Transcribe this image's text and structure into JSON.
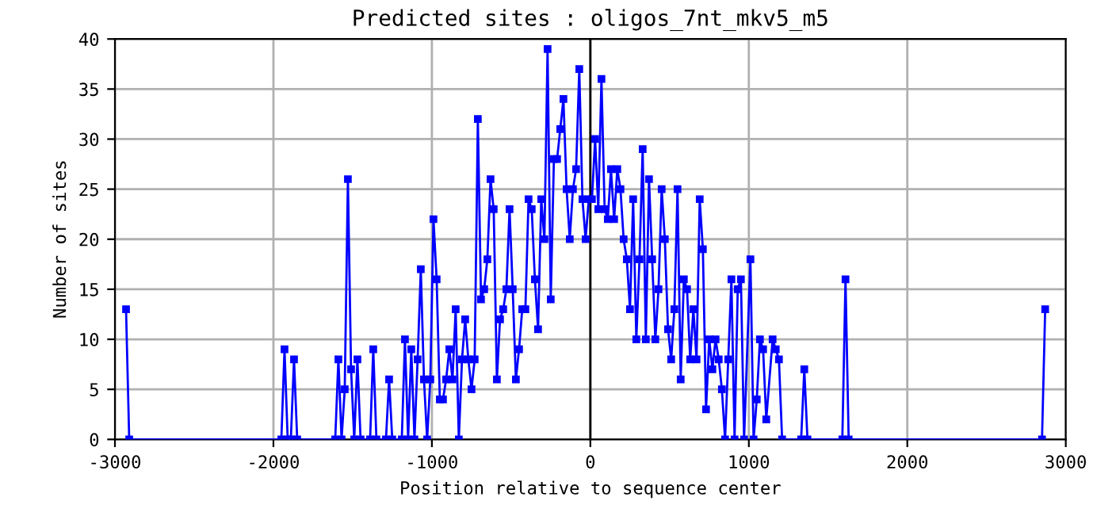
{
  "chart_data": {
    "type": "line",
    "title": "Predicted sites : oligos_7nt_mkv5_m5",
    "xlabel": "Position relative to sequence center",
    "ylabel": "Number of sites",
    "series": [
      {
        "color": "#0000ff",
        "x": [
          -2930,
          -2910,
          -1950,
          -1930,
          -1910,
          -1890,
          -1870,
          -1850,
          -1610,
          -1590,
          -1570,
          -1550,
          -1530,
          -1510,
          -1490,
          -1470,
          -1450,
          -1390,
          -1370,
          -1350,
          -1290,
          -1270,
          -1250,
          -1190,
          -1170,
          -1150,
          -1130,
          -1110,
          -1090,
          -1070,
          -1050,
          -1030,
          -1010,
          -990,
          -970,
          -950,
          -930,
          -910,
          -890,
          -870,
          -850,
          -830,
          -810,
          -790,
          -770,
          -750,
          -730,
          -710,
          -690,
          -670,
          -650,
          -630,
          -610,
          -590,
          -570,
          -550,
          -530,
          -510,
          -490,
          -470,
          -450,
          -430,
          -410,
          -390,
          -370,
          -350,
          -330,
          -310,
          -290,
          -270,
          -250,
          -230,
          -210,
          -190,
          -170,
          -150,
          -130,
          -110,
          -90,
          -70,
          -50,
          -30,
          -10,
          10,
          30,
          50,
          70,
          90,
          110,
          130,
          150,
          170,
          190,
          210,
          230,
          250,
          270,
          290,
          310,
          330,
          350,
          370,
          390,
          410,
          430,
          450,
          470,
          490,
          510,
          530,
          550,
          570,
          590,
          610,
          630,
          650,
          670,
          690,
          710,
          730,
          750,
          770,
          790,
          810,
          830,
          850,
          870,
          890,
          910,
          930,
          950,
          970,
          1010,
          1030,
          1050,
          1070,
          1090,
          1110,
          1150,
          1170,
          1190,
          1210,
          1330,
          1350,
          1370,
          1590,
          1610,
          1630,
          2850,
          2870
        ],
        "values": [
          13,
          0,
          0,
          9,
          0,
          0,
          8,
          0,
          0,
          8,
          0,
          5,
          26,
          7,
          0,
          8,
          0,
          0,
          9,
          0,
          0,
          6,
          0,
          0,
          10,
          0,
          9,
          0,
          8,
          17,
          6,
          0,
          6,
          22,
          16,
          4,
          4,
          6,
          9,
          6,
          13,
          0,
          8,
          12,
          8,
          5,
          8,
          32,
          14,
          15,
          18,
          26,
          23,
          6,
          12,
          13,
          15,
          23,
          15,
          6,
          9,
          13,
          13,
          24,
          23,
          16,
          11,
          24,
          20,
          39,
          14,
          28,
          28,
          31,
          34,
          25,
          20,
          25,
          27,
          37,
          24,
          20,
          24,
          24,
          30,
          23,
          36,
          23,
          22,
          27,
          22,
          27,
          25,
          20,
          18,
          13,
          24,
          10,
          18,
          29,
          10,
          26,
          18,
          10,
          15,
          25,
          20,
          11,
          8,
          13,
          25,
          6,
          16,
          15,
          8,
          13,
          8,
          24,
          19,
          3,
          10,
          7,
          10,
          8,
          5,
          0,
          8,
          16,
          0,
          15,
          16,
          0,
          18,
          0,
          4,
          10,
          9,
          2,
          10,
          9,
          8,
          0,
          0,
          7,
          0,
          0,
          16,
          0,
          0,
          13
        ]
      }
    ],
    "xlim": [
      -3000,
      3000
    ],
    "xticks": [
      -3000,
      -2000,
      -1000,
      0,
      1000,
      2000,
      3000
    ],
    "ylim": [
      0,
      40
    ],
    "yticks": [
      0,
      5,
      10,
      15,
      20,
      25,
      30,
      35,
      40
    ],
    "grid": true,
    "marker": "square",
    "line_style": "solid",
    "ref_lines": [
      {
        "axis": "x",
        "value": 0,
        "color": "#000000"
      }
    ]
  }
}
